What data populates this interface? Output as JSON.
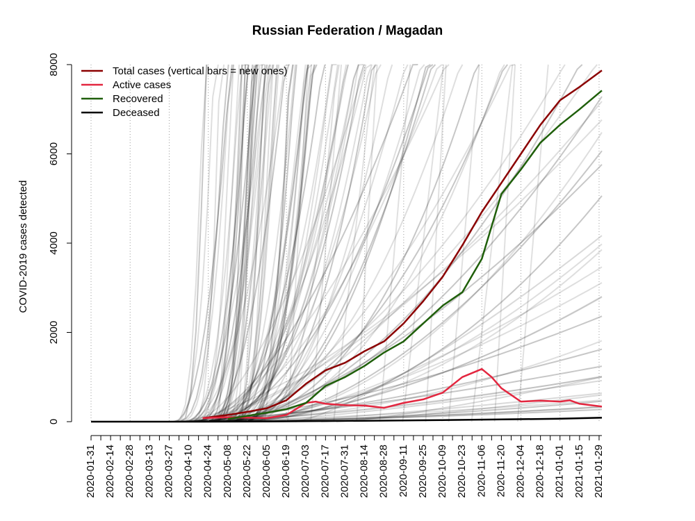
{
  "chart_data": {
    "type": "line",
    "title": "Russian Federation / Magadan",
    "xlabel": "",
    "ylabel": "COVID-2019 cases detected",
    "x_start": "2020-01-31",
    "x_end": "2021-01-31",
    "xlim": [
      "2020-01-31",
      "2021-01-31"
    ],
    "ylim": [
      0,
      8000
    ],
    "y_ticks": [
      0,
      2000,
      4000,
      6000,
      8000
    ],
    "x_ticks": [
      "2020-01-31",
      "2020-02-14",
      "2020-02-28",
      "2020-03-13",
      "2020-03-27",
      "2020-04-10",
      "2020-04-24",
      "2020-05-08",
      "2020-05-22",
      "2020-06-05",
      "2020-06-19",
      "2020-07-03",
      "2020-07-17",
      "2020-07-31",
      "2020-08-14",
      "2020-08-28",
      "2020-09-11",
      "2020-09-25",
      "2020-10-09",
      "2020-10-23",
      "2020-11-06",
      "2020-11-20",
      "2020-12-04",
      "2020-12-18",
      "2021-01-01",
      "2021-01-15",
      "2021-01-29"
    ],
    "grid": "vertical-dotted",
    "legend_position": "top-left",
    "legend": [
      {
        "label": "Total cases (vertical bars = new ones)",
        "color": "#8b0000"
      },
      {
        "label": "Active cases",
        "color": "#e3263f"
      },
      {
        "label": "Recovered",
        "color": "#1f5f0a"
      },
      {
        "label": "Deceased",
        "color": "#000000"
      }
    ],
    "series": [
      {
        "name": "Total cases (vertical bars = new ones)",
        "color": "#8b0000",
        "x": [
          "2020-04-20",
          "2020-05-08",
          "2020-05-22",
          "2020-06-05",
          "2020-06-19",
          "2020-07-03",
          "2020-07-17",
          "2020-07-31",
          "2020-08-14",
          "2020-08-28",
          "2020-09-11",
          "2020-09-25",
          "2020-10-09",
          "2020-10-23",
          "2020-11-06",
          "2020-11-20",
          "2020-12-04",
          "2020-12-18",
          "2021-01-01",
          "2021-01-15",
          "2021-01-31"
        ],
        "values": [
          80,
          150,
          220,
          300,
          480,
          850,
          1150,
          1320,
          1580,
          1800,
          2200,
          2700,
          3250,
          3950,
          4700,
          5350,
          6000,
          6650,
          7200,
          7500,
          7870
        ]
      },
      {
        "name": "Active cases",
        "color": "#e3263f",
        "x": [
          "2020-04-20",
          "2020-05-08",
          "2020-05-22",
          "2020-06-05",
          "2020-06-19",
          "2020-07-03",
          "2020-07-10",
          "2020-07-17",
          "2020-07-31",
          "2020-08-14",
          "2020-08-28",
          "2020-09-11",
          "2020-09-25",
          "2020-10-09",
          "2020-10-23",
          "2020-11-06",
          "2020-11-13",
          "2020-11-20",
          "2020-12-04",
          "2020-12-18",
          "2021-01-01",
          "2021-01-08",
          "2021-01-15",
          "2021-01-31"
        ],
        "values": [
          80,
          100,
          90,
          80,
          150,
          420,
          450,
          400,
          370,
          360,
          310,
          420,
          500,
          650,
          1000,
          1180,
          1000,
          750,
          450,
          470,
          450,
          480,
          400,
          340
        ]
      },
      {
        "name": "Recovered",
        "color": "#1f5f0a",
        "x": [
          "2020-05-08",
          "2020-05-22",
          "2020-06-05",
          "2020-06-19",
          "2020-07-03",
          "2020-07-17",
          "2020-07-31",
          "2020-08-14",
          "2020-08-28",
          "2020-09-11",
          "2020-09-25",
          "2020-10-09",
          "2020-10-23",
          "2020-11-06",
          "2020-11-20",
          "2020-12-04",
          "2020-12-18",
          "2021-01-01",
          "2021-01-15",
          "2021-01-31"
        ],
        "values": [
          60,
          130,
          200,
          280,
          420,
          800,
          1000,
          1250,
          1550,
          1800,
          2200,
          2600,
          2900,
          3650,
          5100,
          5650,
          6250,
          6650,
          7000,
          7420
        ]
      },
      {
        "name": "Deceased",
        "color": "#000000",
        "x": [
          "2020-01-31",
          "2020-04-20",
          "2020-06-05",
          "2020-08-14",
          "2020-10-09",
          "2020-11-20",
          "2021-01-01",
          "2021-01-31"
        ],
        "values": [
          0,
          0,
          5,
          20,
          35,
          50,
          65,
          90
        ]
      }
    ]
  }
}
